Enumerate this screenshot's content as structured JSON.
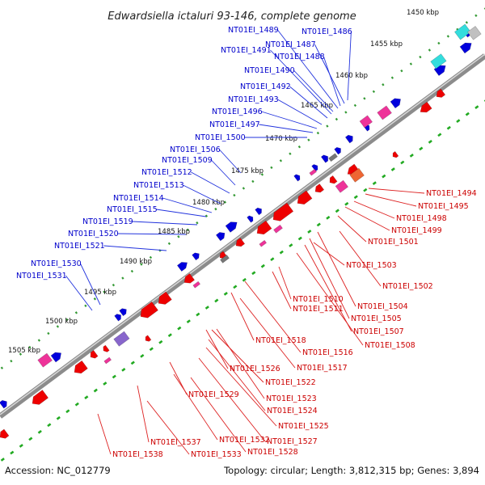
{
  "title": "Edwardsiella ictaluri 93-146, complete genome",
  "footer": {
    "accession": "Accession: NC_012779",
    "summary": "Topology: circular; Length: 3,812,315 bp; Genes: 3,894"
  },
  "colors": {
    "backbone": "#8c8c8c",
    "forward_strand": "#0000dd",
    "reverse_strand": "#ee0000",
    "forward_label": "#0000cc",
    "reverse_label": "#cc0000",
    "gc_plus": "#339933",
    "gc_minus": "#22aa22",
    "cyan_feature": "#33dddd",
    "magenta_feature": "#ee3399",
    "gray_feature": "#777777",
    "violet_feature": "#8866cc"
  },
  "ticks": [
    {
      "label": "1450 kbp"
    },
    {
      "label": "1455 kbp"
    },
    {
      "label": "1460 kbp"
    },
    {
      "label": "1465 kbp"
    },
    {
      "label": "1470 kbp"
    },
    {
      "label": "1475 kbp"
    },
    {
      "label": "1480 kbp"
    },
    {
      "label": "1485 kbp"
    },
    {
      "label": "1490 kbp"
    },
    {
      "label": "1495 kbp"
    },
    {
      "label": "1500 kbp"
    },
    {
      "label": "1505 kbp"
    }
  ],
  "forward_genes": [
    "NT01EI_1486",
    "NT01EI_1487",
    "NT01EI_1488",
    "NT01EI_1489",
    "NT01EI_1490",
    "NT01EI_1491",
    "NT01EI_1492",
    "NT01EI_1493",
    "NT01EI_1496",
    "NT01EI_1497",
    "NT01EI_1500",
    "NT01EI_1506",
    "NT01EI_1509",
    "NT01EI_1512",
    "NT01EI_1513",
    "NT01EI_1514",
    "NT01EI_1515",
    "NT01EI_1519",
    "NT01EI_1520",
    "NT01EI_1521",
    "NT01EI_1530",
    "NT01EI_1531"
  ],
  "reverse_genes": [
    "NT01EI_1494",
    "NT01EI_1495",
    "NT01EI_1498",
    "NT01EI_1499",
    "NT01EI_1501",
    "NT01EI_1503",
    "NT01EI_1502",
    "NT01EI_1510",
    "NT01EI_1511",
    "NT01EI_1504",
    "NT01EI_1505",
    "NT01EI_1507",
    "NT01EI_1508",
    "NT01EI_1518",
    "NT01EI_1516",
    "NT01EI_1517",
    "NT01EI_1526",
    "NT01EI_1522",
    "NT01EI_1523",
    "NT01EI_1529",
    "NT01EI_1524",
    "NT01EI_1525",
    "NT01EI_1527",
    "NT01EI_1537",
    "NT01EI_1532",
    "NT01EI_1528",
    "NT01EI_1538",
    "NT01EI_1533"
  ]
}
